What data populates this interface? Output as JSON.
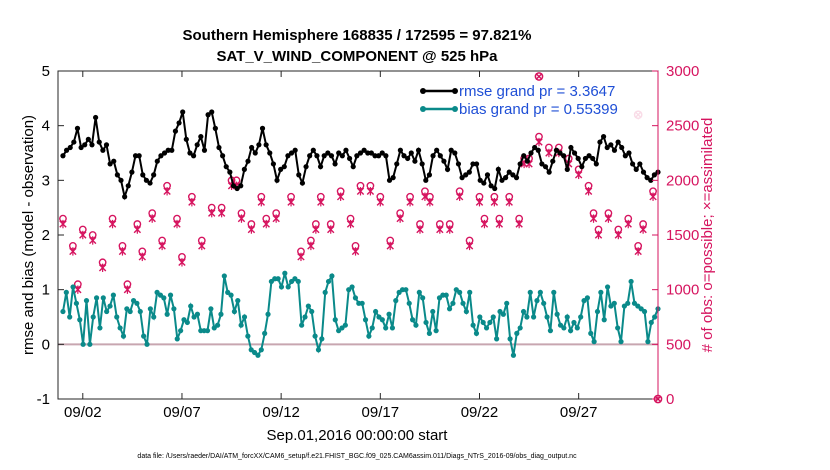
{
  "chart_data": {
    "type": "line",
    "title": "Southern Hemisphere 168835 / 172595 = 97.821%",
    "subtitle": "SAT_V_WIND_COMPONENT @ 525 hPa",
    "xlabel": "Sep.01,2016 00:00:00 start",
    "ylabel_left": "rmse and bias (model - observation)",
    "ylabel_right": "# of obs: o=possible; ×=assimilated",
    "footer": "data file: /Users/raeder/DAI/ATM_forcXX/CAM6_setup/f.e21.FHIST_BGC.f09_025.CAM6assim.011/Diags_NTrS_2016-09/obs_diag_output.nc",
    "xlim": [
      0.75,
      31.0
    ],
    "ylim_left": [
      -1,
      5
    ],
    "ylim_right": [
      0,
      3000
    ],
    "x_ticks": [
      2,
      7,
      12,
      17,
      22,
      27
    ],
    "x_tick_labels": [
      "09/02",
      "09/07",
      "09/12",
      "09/17",
      "09/22",
      "09/27"
    ],
    "y_left_ticks": [
      "-1",
      "0",
      "1",
      "2",
      "3",
      "4",
      "5"
    ],
    "y_right_ticks": [
      "0",
      "500",
      "1000",
      "1500",
      "2000",
      "2500",
      "3000"
    ],
    "zero_line": 0,
    "series": [
      {
        "name": "rmse grand pr = 3.3647",
        "color": "#000000",
        "axis": "left",
        "values": [
          3.45,
          3.55,
          3.6,
          3.7,
          3.95,
          3.6,
          3.65,
          3.75,
          3.65,
          4.15,
          3.7,
          3.55,
          3.65,
          3.3,
          3.35,
          3.1,
          3.0,
          2.7,
          2.9,
          3.15,
          3.45,
          3.45,
          3.1,
          3.0,
          2.95,
          3.1,
          3.35,
          3.45,
          3.5,
          3.55,
          3.55,
          3.9,
          4.05,
          4.25,
          3.75,
          3.5,
          3.45,
          3.65,
          3.8,
          3.55,
          4.2,
          4.25,
          3.95,
          3.6,
          3.45,
          3.25,
          3.15,
          2.9,
          2.85,
          2.9,
          3.2,
          3.35,
          3.6,
          3.5,
          3.65,
          3.95,
          3.65,
          3.5,
          3.3,
          3.0,
          3.2,
          3.25,
          3.45,
          3.5,
          3.55,
          3.1,
          2.95,
          3.25,
          3.45,
          3.55,
          3.45,
          3.25,
          3.45,
          3.5,
          3.45,
          3.3,
          3.5,
          3.45,
          3.55,
          3.4,
          3.25,
          3.45,
          3.5,
          3.55,
          3.5,
          3.5,
          3.45,
          3.45,
          3.5,
          3.45,
          3.0,
          3.05,
          3.3,
          3.55,
          3.45,
          3.4,
          3.5,
          3.35,
          3.55,
          3.3,
          3.0,
          3.1,
          3.45,
          3.55,
          3.45,
          3.35,
          3.2,
          3.55,
          3.5,
          3.3,
          3.05,
          3.1,
          3.15,
          3.3,
          3.3,
          3.0,
          2.95,
          3.1,
          2.9,
          2.85,
          3.2,
          3.0,
          3.05,
          3.15,
          3.1,
          3.05,
          3.3,
          3.45,
          3.35,
          3.5,
          3.6,
          3.55,
          3.3,
          3.25,
          3.15,
          3.35,
          3.55,
          3.5,
          3.45,
          3.2,
          3.6,
          3.5,
          3.4,
          3.25,
          3.4,
          3.45,
          3.4,
          3.3,
          3.7,
          3.8,
          3.6,
          3.65,
          3.55,
          3.7,
          3.6,
          3.45,
          3.5,
          3.3,
          3.2,
          3.3,
          3.15,
          3.05,
          3.0,
          3.1,
          3.15
        ]
      },
      {
        "name": "bias grand pr = 0.55399",
        "color": "#0a8a8a",
        "axis": "left",
        "values": [
          0.6,
          0.95,
          0.5,
          1.05,
          0.75,
          0.45,
          0.0,
          0.8,
          0.0,
          0.5,
          0.85,
          0.3,
          0.85,
          0.6,
          0.7,
          0.9,
          0.5,
          0.3,
          0.15,
          0.65,
          0.6,
          0.8,
          0.75,
          0.6,
          0.15,
          0.0,
          0.65,
          0.5,
          0.95,
          0.9,
          0.85,
          0.55,
          0.9,
          0.65,
          0.1,
          0.25,
          0.45,
          0.4,
          0.7,
          0.5,
          0.55,
          0.25,
          0.25,
          0.25,
          0.65,
          0.3,
          0.35,
          0.55,
          1.25,
          0.95,
          0.9,
          0.6,
          0.8,
          0.35,
          0.5,
          0.15,
          -0.1,
          -0.15,
          -0.2,
          -0.1,
          0.2,
          0.55,
          1.15,
          1.2,
          1.2,
          1.05,
          1.3,
          1.05,
          1.15,
          1.2,
          1.15,
          0.35,
          0.5,
          0.7,
          0.6,
          0.15,
          -0.1,
          0.1,
          0.95,
          1.15,
          1.25,
          0.45,
          0.25,
          0.3,
          0.35,
          1.0,
          1.05,
          0.85,
          0.75,
          0.75,
          0.45,
          0.15,
          0.3,
          0.6,
          0.5,
          0.45,
          0.3,
          0.55,
          0.3,
          0.8,
          0.95,
          1.0,
          1.0,
          0.75,
          0.45,
          0.35,
          0.95,
          0.85,
          0.4,
          0.2,
          0.6,
          0.25,
          0.85,
          0.9,
          0.9,
          0.65,
          0.75,
          1.0,
          0.95,
          0.75,
          0.6,
          0.95,
          0.35,
          0.2,
          0.5,
          0.4,
          0.3,
          0.4,
          0.5,
          0.1,
          0.6,
          0.55,
          0.75,
          0.1,
          -0.2,
          0.2,
          0.3,
          0.6,
          0.5,
          0.95,
          0.5,
          0.8,
          0.95,
          0.75,
          0.5,
          0.25,
          0.95,
          0.55,
          0.35,
          0.3,
          0.5,
          0.25,
          0.4,
          0.3,
          0.5,
          0.8,
          0.85,
          0.2,
          0.05,
          0.6,
          0.95,
          0.45,
          1.05,
          0.7,
          0.75,
          0.3,
          0.05,
          0.7,
          0.75,
          1.15,
          0.75,
          0.7,
          0.65,
          0.6,
          0.05,
          0.4,
          0.5,
          0.65
        ]
      },
      {
        "name": "possible",
        "color": "#d6145f",
        "axis": "right",
        "marker": "o",
        "x": [
          1.0,
          1.5,
          1.75,
          2.0,
          2.5,
          3.0,
          3.5,
          4.0,
          4.25,
          4.75,
          5.0,
          5.5,
          6.0,
          6.25,
          6.75,
          7.0,
          7.5,
          8.0,
          8.5,
          9.0,
          9.5,
          9.75,
          10.0,
          10.5,
          11.0,
          11.25,
          11.75,
          12.5,
          13.0,
          13.5,
          13.75,
          14.0,
          14.5,
          15.0,
          15.5,
          15.75,
          16.0,
          16.5,
          17.0,
          17.5,
          18.0,
          18.5,
          19.0,
          19.25,
          19.5,
          20.0,
          20.5,
          21.0,
          21.5,
          22.0,
          22.25,
          22.75,
          23.0,
          23.5,
          24.0,
          24.25,
          24.5,
          25.0,
          25.5,
          26.0,
          26.5,
          27.0,
          27.5,
          27.75,
          28.0,
          28.5,
          29.0,
          29.5,
          30.0,
          30.25,
          30.75
        ],
        "values": [
          1650,
          1400,
          1050,
          1550,
          1500,
          1250,
          1650,
          1400,
          1050,
          1600,
          1350,
          1700,
          1450,
          1950,
          1650,
          1300,
          1850,
          1450,
          1750,
          1750,
          2000,
          2000,
          1700,
          1600,
          1850,
          1650,
          1700,
          1850,
          1350,
          1450,
          1600,
          1850,
          1600,
          1900,
          1650,
          1400,
          1950,
          1950,
          1850,
          1450,
          1700,
          1850,
          1600,
          1900,
          1850,
          1600,
          1600,
          1900,
          1450,
          1850,
          1650,
          1850,
          1650,
          1850,
          1650,
          2200,
          2200,
          2400,
          2300,
          2300,
          2200,
          2100,
          1950,
          1700,
          1550,
          1700,
          1550,
          1650,
          1400,
          1600,
          1900
        ]
      },
      {
        "name": "assimilated",
        "color": "#d6145f",
        "axis": "right",
        "marker": "x",
        "x": [
          1.0,
          1.5,
          1.75,
          2.0,
          2.5,
          3.0,
          3.5,
          4.0,
          4.25,
          4.75,
          5.0,
          5.5,
          6.0,
          6.25,
          6.75,
          7.0,
          7.5,
          8.0,
          8.5,
          9.0,
          9.5,
          9.75,
          10.0,
          10.5,
          11.0,
          11.25,
          11.75,
          12.5,
          13.0,
          13.5,
          13.75,
          14.0,
          14.5,
          15.0,
          15.5,
          15.75,
          16.0,
          16.5,
          17.0,
          17.5,
          18.0,
          18.5,
          19.0,
          19.25,
          19.5,
          20.0,
          20.5,
          21.0,
          21.5,
          22.0,
          22.25,
          22.75,
          23.0,
          23.5,
          24.0,
          24.25,
          24.5,
          25.0,
          25.5,
          26.0,
          26.5,
          27.0,
          27.5,
          27.75,
          28.0,
          28.5,
          29.0,
          29.5,
          30.0,
          30.25,
          30.75
        ],
        "values": [
          1600,
          1350,
          1000,
          1500,
          1450,
          1200,
          1600,
          1350,
          1000,
          1550,
          1300,
          1650,
          1400,
          1900,
          1600,
          1250,
          1800,
          1400,
          1700,
          1700,
          1950,
          1950,
          1650,
          1550,
          1800,
          1600,
          1650,
          1800,
          1300,
          1400,
          1550,
          1800,
          1550,
          1850,
          1600,
          1350,
          1900,
          1900,
          1800,
          1400,
          1650,
          1800,
          1550,
          1850,
          1800,
          1550,
          1550,
          1850,
          1400,
          1800,
          1600,
          1800,
          1600,
          1800,
          1600,
          2150,
          2150,
          2350,
          2250,
          2250,
          2150,
          2050,
          1900,
          1650,
          1500,
          1650,
          1500,
          1600,
          1350,
          1550,
          1850
        ]
      }
    ],
    "extra_markers": [
      {
        "x": 25.0,
        "value": 2950,
        "name": "outlier-possible"
      },
      {
        "x": 30.0,
        "value": 2600,
        "name": "outlier-assimilated"
      },
      {
        "x": 31.0,
        "value": 0,
        "name": "last-point-zero"
      }
    ]
  }
}
